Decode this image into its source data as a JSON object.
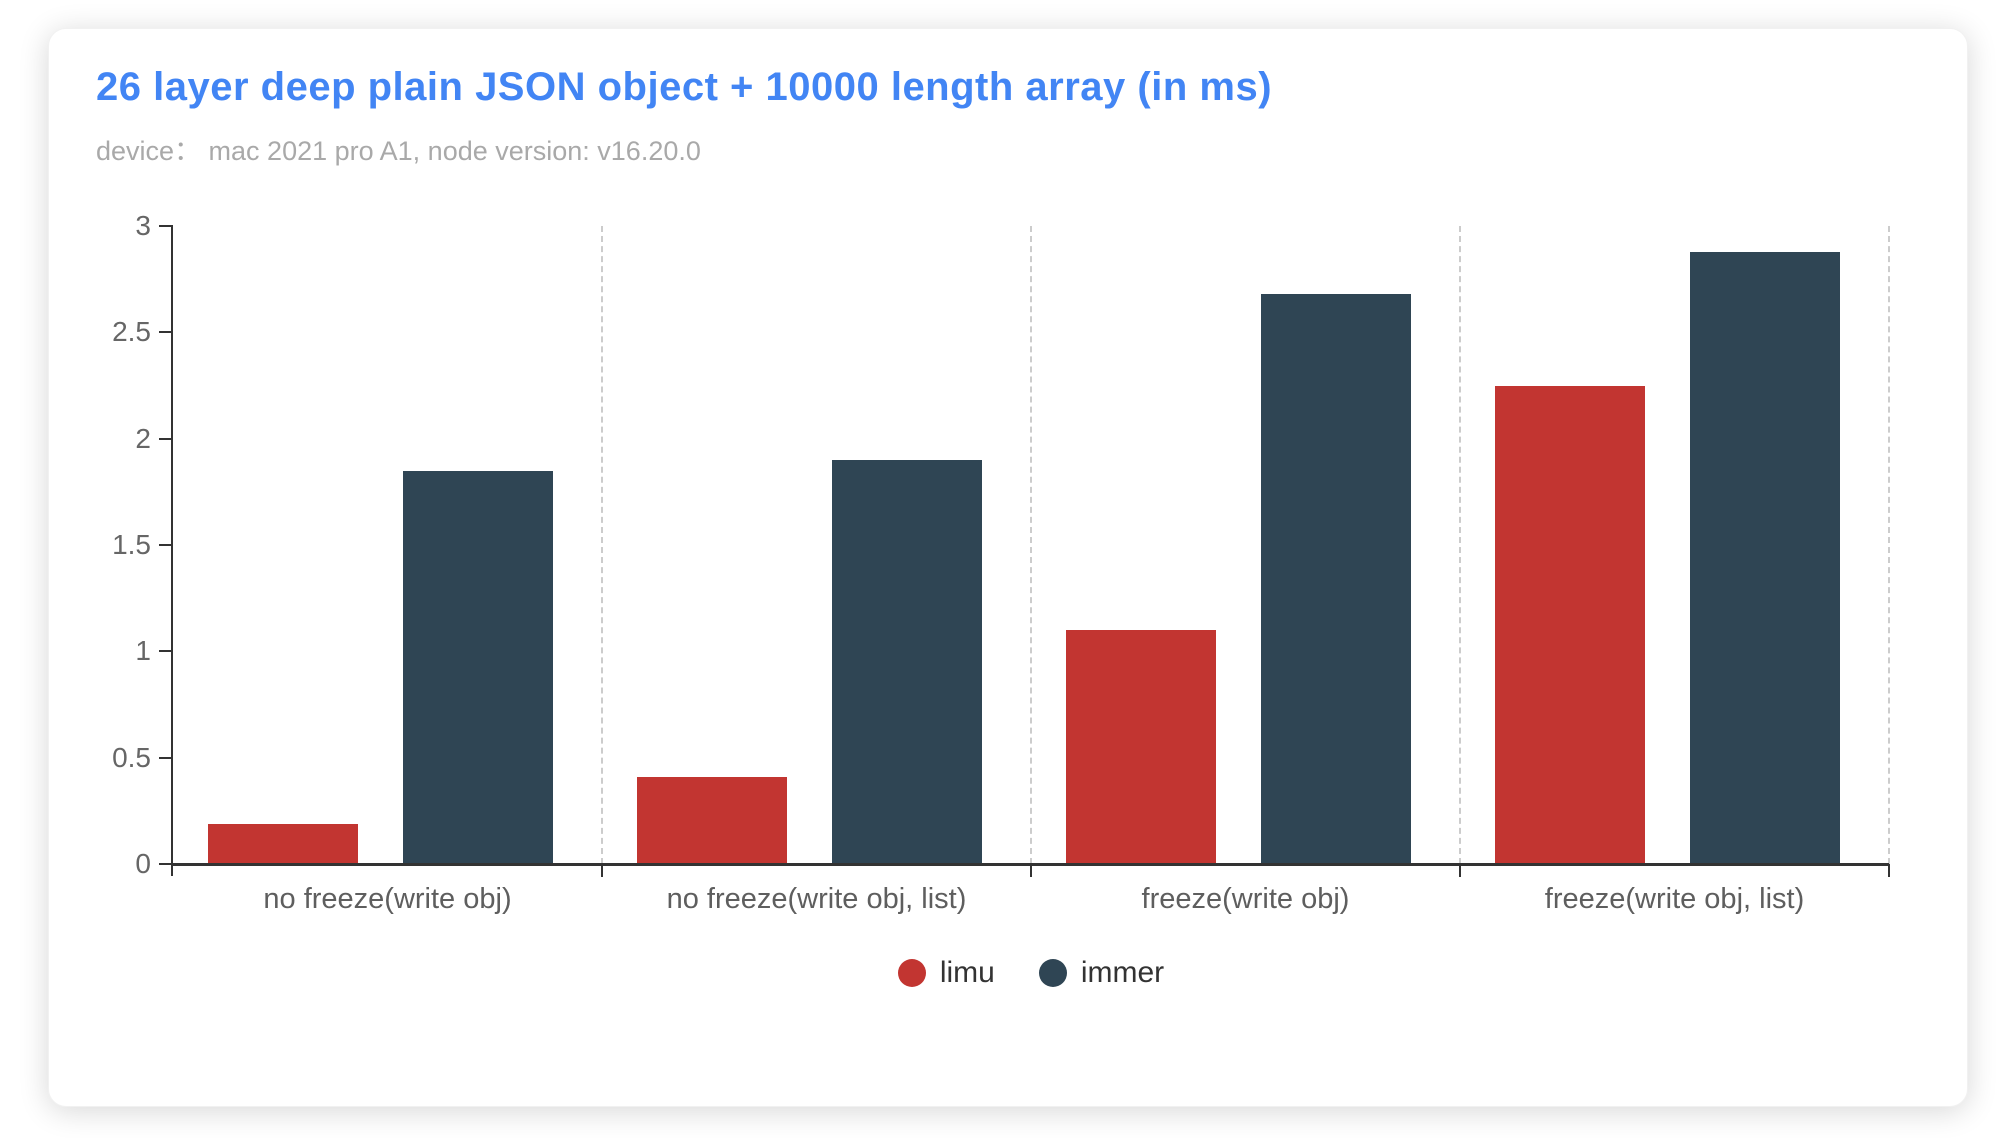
{
  "header": {
    "title": "26 layer deep plain JSON object + 10000 length array (in ms)",
    "subtitle": "device： mac 2021 pro A1, node version: v16.20.0"
  },
  "chart_data": {
    "type": "bar",
    "title": "26 layer deep plain JSON object + 10000 length array (in ms)",
    "subtitle": "device： mac 2021 pro A1, node version: v16.20.0",
    "unit": "ms",
    "categories": [
      "no freeze(write obj)",
      "no freeze(write obj, list)",
      "freeze(write obj)",
      "freeze(write obj, list)"
    ],
    "series": [
      {
        "name": "limu",
        "color": "#c23531",
        "values": [
          0.19,
          0.41,
          1.1,
          2.25
        ]
      },
      {
        "name": "immer",
        "color": "#2f4554",
        "values": [
          1.85,
          1.9,
          2.68,
          2.88
        ]
      }
    ],
    "ylim": [
      0,
      3
    ],
    "yticks": [
      0,
      0.5,
      1,
      1.5,
      2,
      2.5,
      3
    ],
    "ytick_labels": [
      "0",
      "0.5",
      "1",
      "1.5",
      "2",
      "2.5",
      "3"
    ],
    "xlabel": "",
    "ylabel": "",
    "grid": "vertical-dashed-category-separators",
    "legend": {
      "position": "bottom-center",
      "items": [
        "limu",
        "immer"
      ]
    }
  },
  "colors": {
    "title": "#4285f4",
    "subtitle": "#a9a9a9",
    "axis": "#333333",
    "ytick_label": "#666666",
    "xtick_label": "#5e5e5e",
    "separator": "#cccccc",
    "legend_text": "#333333",
    "card_bg": "#ffffff"
  }
}
